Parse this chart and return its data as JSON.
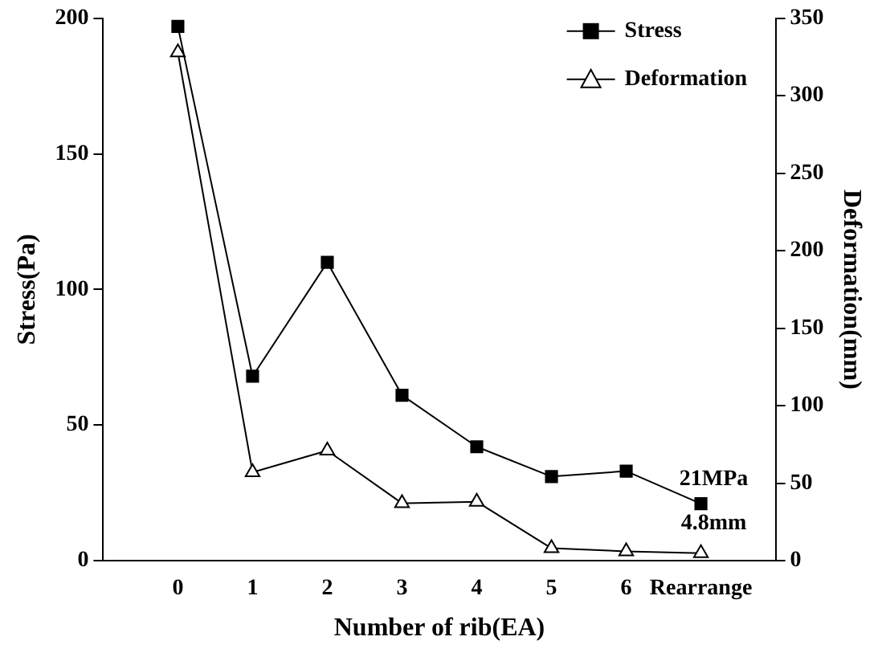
{
  "chart_data": {
    "type": "line",
    "xlabel": "Number of rib(EA)",
    "ylabel": "Stress(Pa)",
    "y2label": "Deformation(mm)",
    "categories": [
      null,
      "0",
      "1",
      "2",
      "3",
      "4",
      "5",
      "6",
      "Rearrange",
      null
    ],
    "series": [
      {
        "name": "Stress",
        "color": "#000000",
        "marker": "square",
        "values": [
          null,
          197,
          68,
          110,
          61,
          42,
          31,
          33,
          21,
          null
        ]
      },
      {
        "name": "Deformation",
        "color": "#000000",
        "marker": "triangle",
        "axis": "y2",
        "values": [
          null,
          328,
          57,
          71,
          37,
          38,
          8,
          6,
          4.8,
          null
        ]
      }
    ],
    "ylim": [
      0,
      200
    ],
    "yticks": [
      0,
      50,
      100,
      150,
      200
    ],
    "y2lim": [
      0,
      350
    ],
    "y2ticks": [
      0,
      50,
      100,
      150,
      200,
      250,
      300,
      350
    ],
    "grid": false,
    "legend": "top right",
    "line_style": "solid",
    "annotations": [
      {
        "text": "21MPa",
        "x": "Rearrange",
        "y": 21
      },
      {
        "text": "4.8mm",
        "x": "Rearrange",
        "y": 4.8
      }
    ]
  }
}
